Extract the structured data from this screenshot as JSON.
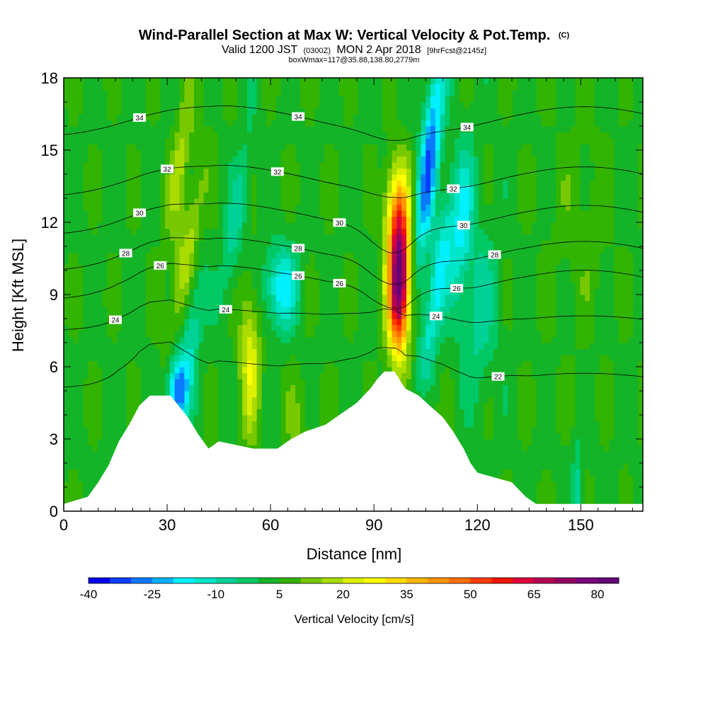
{
  "header": {
    "title_main": "Wind-Parallel Section at Max W: Vertical Velocity & Pot.Temp.",
    "title_mark": "(C)",
    "valid_prefix": "Valid 1200 JST",
    "valid_utc": "(0300Z)",
    "valid_date": "MON 2 Apr 2018",
    "valid_fcst": "[9hrFcst@2145z]",
    "box_info": "boxWmax=117@35.88,138.80,2779m"
  },
  "chart_data": {
    "type": "heatmap",
    "xlabel": "Distance [nm]",
    "ylabel": "Height [Kft MSL]",
    "xlim": [
      0,
      168
    ],
    "ylim": [
      0,
      18
    ],
    "x_ticks": [
      "0",
      "30",
      "60",
      "90",
      "120",
      "150"
    ],
    "x_tick_values": [
      0,
      30,
      60,
      90,
      120,
      150
    ],
    "y_ticks": [
      "0",
      "3",
      "6",
      "9",
      "12",
      "15",
      "18"
    ],
    "y_tick_values": [
      0,
      3,
      6,
      9,
      12,
      15,
      18
    ],
    "colorbar": {
      "label": "Vertical Velocity [cm/s]",
      "min": -40,
      "step": 5,
      "tick_labels": [
        "-40",
        "-25",
        "-10",
        "5",
        "20",
        "35",
        "50",
        "65",
        "80"
      ],
      "tick_values": [
        -40,
        -25,
        -10,
        5,
        20,
        35,
        50,
        65,
        80
      ],
      "colors": [
        "#0000f0",
        "#0a3cff",
        "#0a78ff",
        "#00b4ff",
        "#00f0ff",
        "#00e6c8",
        "#00d296",
        "#00c864",
        "#14b428",
        "#32b400",
        "#78c800",
        "#aadc00",
        "#dcf000",
        "#ffff00",
        "#ffdc00",
        "#ffb400",
        "#ff9600",
        "#ff6e00",
        "#ff3c00",
        "#f01400",
        "#dc003c",
        "#b40050",
        "#960064",
        "#78007d",
        "#640078"
      ]
    },
    "terrain_kft": [
      [
        0,
        0.3
      ],
      [
        7,
        0.6
      ],
      [
        10,
        1.2
      ],
      [
        13,
        1.9
      ],
      [
        16,
        2.9
      ],
      [
        19,
        3.6
      ],
      [
        22,
        4.4
      ],
      [
        25,
        4.8
      ],
      [
        31,
        4.8
      ],
      [
        36,
        3.9
      ],
      [
        39,
        3.2
      ],
      [
        42,
        2.6
      ],
      [
        45,
        2.9
      ],
      [
        55,
        2.6
      ],
      [
        62,
        2.6
      ],
      [
        66,
        3.0
      ],
      [
        70,
        3.3
      ],
      [
        76,
        3.6
      ],
      [
        80,
        4.0
      ],
      [
        85,
        4.5
      ],
      [
        89,
        5.1
      ],
      [
        91,
        5.5
      ],
      [
        93,
        5.8
      ],
      [
        96,
        5.8
      ],
      [
        99,
        5.1
      ],
      [
        103,
        4.8
      ],
      [
        106,
        4.4
      ],
      [
        110,
        3.9
      ],
      [
        113,
        3.3
      ],
      [
        116,
        2.6
      ],
      [
        118,
        2.0
      ],
      [
        120,
        1.6
      ],
      [
        130,
        1.2
      ],
      [
        134,
        0.6
      ],
      [
        137,
        0.3
      ],
      [
        168,
        0.3
      ]
    ],
    "theta_contours": [
      {
        "label": "22",
        "y_base": 5.4
      },
      {
        "label": "24",
        "y_base": 7.8
      },
      {
        "label": "26",
        "y_base": 9.4
      },
      {
        "label": "28",
        "y_base": 10.6
      },
      {
        "label": "30",
        "y_base": 12.1
      },
      {
        "label": "32",
        "y_base": 13.7
      },
      {
        "label": "34",
        "y_base": 16.2
      }
    ],
    "velocity_features": [
      {
        "x": 97,
        "y": 9.0,
        "value": 83
      },
      {
        "x": 97,
        "y": 11.5,
        "value": 55
      },
      {
        "x": 54,
        "y": 6.5,
        "value": 25
      },
      {
        "x": 35,
        "y": 11.0,
        "value": 22
      },
      {
        "x": 33,
        "y": 5.0,
        "value": -27
      },
      {
        "x": 103,
        "y": 14.5,
        "value": -30
      },
      {
        "x": 113,
        "y": 10.0,
        "value": -18
      }
    ]
  }
}
